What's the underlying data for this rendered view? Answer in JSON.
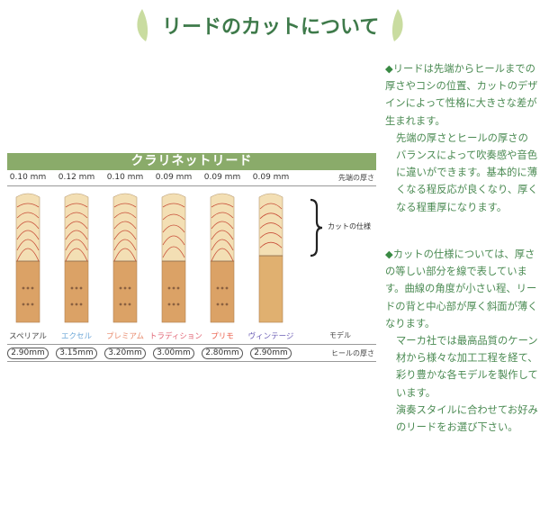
{
  "title": "リードのカットについて",
  "table": {
    "header": "クラリネットリード",
    "tip_label": "先端の厚さ",
    "cut_label": "カットの仕様",
    "model_label": "モデル",
    "heel_label": "ヒールの厚さ",
    "reeds": [
      {
        "tip": "0.10 mm",
        "model": "スペリアル",
        "heel": "2.90mm",
        "color": "#444444",
        "rings": 6
      },
      {
        "tip": "0.12 mm",
        "model": "エクセル",
        "heel": "3.15mm",
        "color": "#6fa8d8",
        "rings": 6
      },
      {
        "tip": "0.10 mm",
        "model": "プレミアム",
        "heel": "3.20mm",
        "color": "#e88a6c",
        "rings": 6
      },
      {
        "tip": "0.09 mm",
        "model": "トラディション",
        "heel": "3.00mm",
        "color": "#e06272",
        "rings": 5
      },
      {
        "tip": "0.09 mm",
        "model": "プリモ",
        "heel": "2.80mm",
        "color": "#ea5c48",
        "rings": 6
      },
      {
        "tip": "0.09 mm",
        "model": "ヴィンテージ",
        "heel": "2.90mm",
        "color": "#6a5cb4",
        "rings": 5
      }
    ]
  },
  "text": {
    "p1": [
      "リードは先端からヒールまでの厚さやコシの位置、カットのデザインによって性格に大きさな差が生まれます。",
      "先端の厚さとヒールの厚さのバランスによって吹奏感や音色に違いができます。基本的に薄くなる程反応が良くなり、厚くなる程重厚になります。"
    ],
    "p2": [
      "カットの仕様については、厚さの等しい部分を線で表しています。曲線の角度が小さい程、リードの背と中心部が厚く斜面が薄くなります。",
      "マーカ社では最高品質のケーン材から様々な加工工程を経て、彩り豊かな各モデルを製作しています。",
      "演奏スタイルに合わせてお好みのリードをお選び下さい。"
    ],
    "bullet": "◆"
  }
}
